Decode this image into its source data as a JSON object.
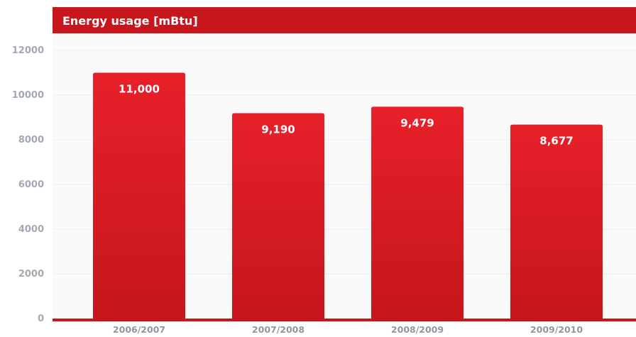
{
  "chart_data": {
    "type": "bar",
    "title": "Energy usage [mBtu]",
    "categories": [
      "2006/2007",
      "2007/2008",
      "2008/2009",
      "2009/2010"
    ],
    "values": [
      11000,
      9190,
      9479,
      8677
    ],
    "value_labels": [
      "11,000",
      "9,190",
      "9,479",
      "8,677"
    ],
    "xlabel": "",
    "ylabel": "",
    "ylim": [
      0,
      12000
    ],
    "yticks": [
      0,
      2000,
      4000,
      6000,
      8000,
      10000,
      12000
    ],
    "ytick_labels": [
      "0",
      "2000",
      "4000",
      "6000",
      "8000",
      "10000",
      "12000"
    ],
    "grid": true,
    "legend": "none",
    "colors": {
      "bar_top": "#e8202a",
      "bar_bottom": "#c5161c",
      "title_band": "#c8161d",
      "baseline": "#c8161d"
    }
  }
}
